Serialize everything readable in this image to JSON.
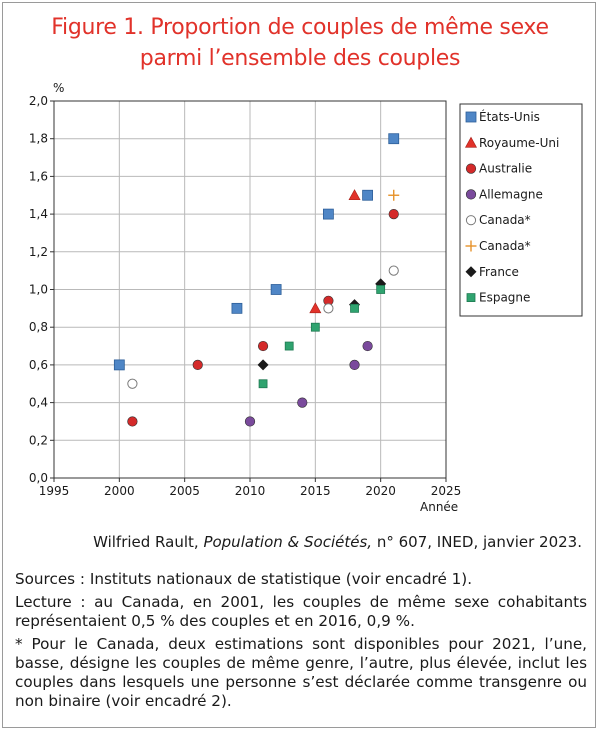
{
  "title": {
    "line1": "Figure 1. Proportion de couples de même sexe",
    "line2": "parmi l’ensemble des couples"
  },
  "chart_data": {
    "type": "scatter",
    "title": "Figure 1. Proportion de couples de même sexe parmi l’ensemble des couples",
    "ylabel": "%",
    "xlabel": "Année",
    "xlim": [
      1995,
      2025
    ],
    "ylim": [
      0,
      2.0
    ],
    "xticks": [
      "1995",
      "2000",
      "2005",
      "2010",
      "2015",
      "2020",
      "2025"
    ],
    "yticks": [
      "0,0",
      "0,2",
      "0,4",
      "0,6",
      "0,8",
      "1,0",
      "1,2",
      "1,4",
      "1,6",
      "1,8",
      "2,0"
    ],
    "grid": true,
    "legend_position": "right",
    "series": [
      {
        "name": "États-Unis",
        "marker": "square",
        "color": "#4f86c6",
        "points": [
          [
            2000,
            0.6
          ],
          [
            2009,
            0.9
          ],
          [
            2012,
            1.0
          ],
          [
            2016,
            1.4
          ],
          [
            2019,
            1.5
          ],
          [
            2021,
            1.8
          ]
        ]
      },
      {
        "name": "Royaume-Uni",
        "marker": "triangle",
        "color": "#e1322a",
        "points": [
          [
            2015,
            0.9
          ],
          [
            2018,
            1.5
          ]
        ]
      },
      {
        "name": "Australie",
        "marker": "circle",
        "color": "#d42a2a",
        "points": [
          [
            2001,
            0.3
          ],
          [
            2006,
            0.6
          ],
          [
            2011,
            0.7
          ],
          [
            2016,
            0.94
          ],
          [
            2021,
            1.4
          ]
        ]
      },
      {
        "name": "Allemagne",
        "marker": "circle",
        "color": "#7a4a9c",
        "points": [
          [
            2010,
            0.3
          ],
          [
            2014,
            0.4
          ],
          [
            2018,
            0.6
          ],
          [
            2019,
            0.7
          ]
        ]
      },
      {
        "name": "Canada*",
        "marker": "open-circle",
        "color": "#7a7a7a",
        "points": [
          [
            2001,
            0.5
          ],
          [
            2016,
            0.9
          ],
          [
            2021,
            1.1
          ]
        ]
      },
      {
        "name": "Canada*",
        "marker": "plus",
        "color": "#e6922a",
        "points": [
          [
            2021,
            1.5
          ]
        ]
      },
      {
        "name": "France",
        "marker": "diamond",
        "color": "#1a1a1a",
        "points": [
          [
            2011,
            0.6
          ],
          [
            2018,
            0.92
          ],
          [
            2020,
            1.03
          ]
        ]
      },
      {
        "name": "Espagne",
        "marker": "square-small",
        "color": "#2fa36f",
        "points": [
          [
            2011,
            0.5
          ],
          [
            2013,
            0.7
          ],
          [
            2015,
            0.8
          ],
          [
            2018,
            0.9
          ],
          [
            2020,
            1.0
          ]
        ]
      }
    ]
  },
  "credit": {
    "author": "Wilfried Rault, ",
    "journal": "Population & Sociétés,",
    "rest": " n° 607, INED, janvier 2023."
  },
  "notes": {
    "sources": "Sources : Instituts nationaux de statistique (voir encadré 1).",
    "lecture": "Lecture : au Canada, en 2001, les couples de même sexe cohabitants représentaient 0,5 % des couples et en 2016, 0,9 %.",
    "footnote": "* Pour le Canada, deux estimations sont disponibles pour 2021, l’une, basse, désigne les couples de même genre, l’autre, plus élevée, inclut les couples dans lesquels une personne s’est déclarée comme transgenre ou non binaire (voir encadré 2)."
  }
}
